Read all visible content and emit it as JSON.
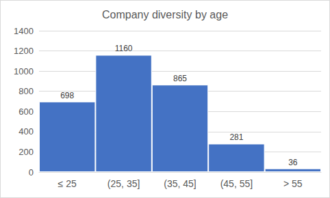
{
  "chart_data": {
    "type": "bar",
    "title": "Company diversity by age",
    "categories": [
      "≤ 25",
      "(25, 35]",
      "(35, 45]",
      "(45, 55]",
      "> 55"
    ],
    "values": [
      698,
      1160,
      865,
      281,
      36
    ],
    "color": "#4472c4",
    "ylim": [
      0,
      1400
    ],
    "yticks": [
      0,
      200,
      400,
      600,
      800,
      1000,
      1200,
      1400
    ],
    "grid": true,
    "data_labels": true
  }
}
